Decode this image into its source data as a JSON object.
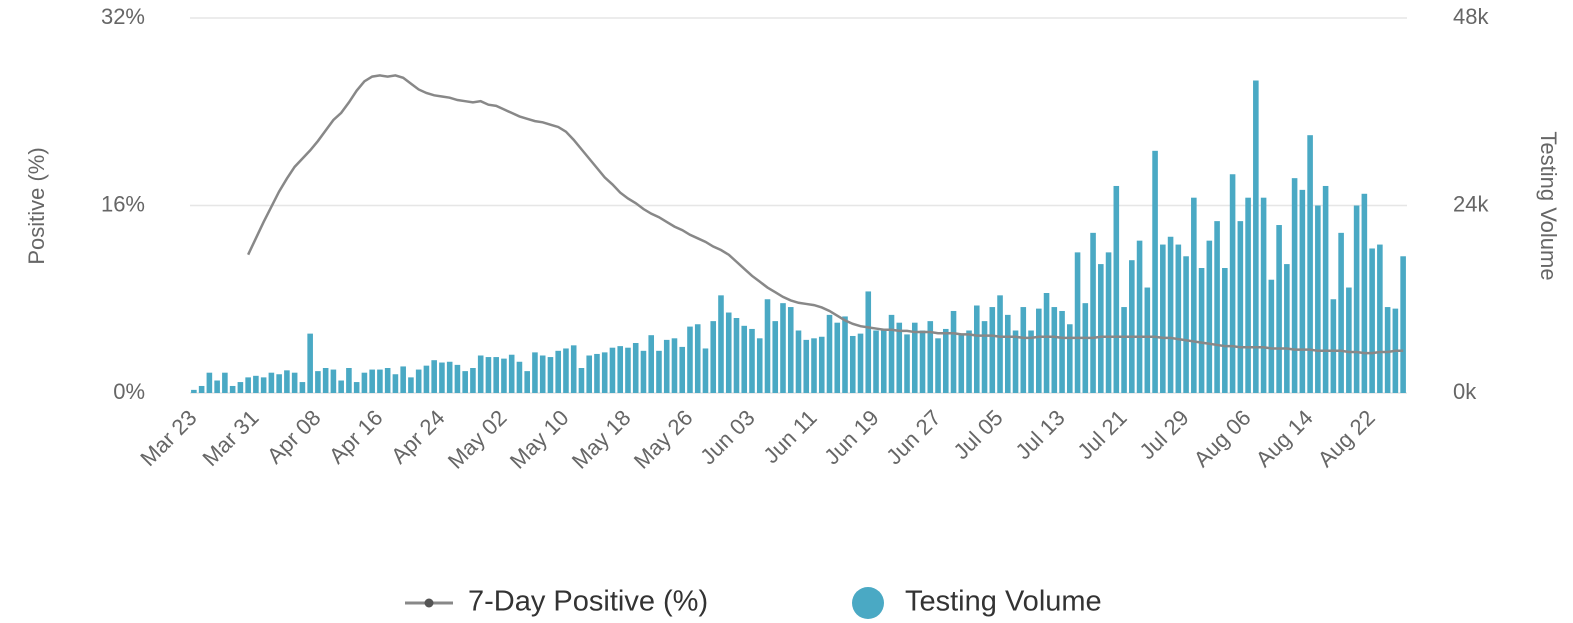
{
  "chart_data": {
    "type": "bar",
    "ylabel": "Positive (%)",
    "y2label": "Testing Volume",
    "categories": [
      "Mar 23",
      null,
      null,
      null,
      null,
      null,
      null,
      null,
      "Mar 31",
      null,
      null,
      null,
      null,
      null,
      null,
      null,
      "Apr 08",
      null,
      null,
      null,
      null,
      null,
      null,
      null,
      "Apr 16",
      null,
      null,
      null,
      null,
      null,
      null,
      null,
      "Apr 24",
      null,
      null,
      null,
      null,
      null,
      null,
      null,
      "May 02",
      null,
      null,
      null,
      null,
      null,
      null,
      null,
      "May 10",
      null,
      null,
      null,
      null,
      null,
      null,
      null,
      "May 18",
      null,
      null,
      null,
      null,
      null,
      null,
      null,
      "May 26",
      null,
      null,
      null,
      null,
      null,
      null,
      null,
      "Jun 03",
      null,
      null,
      null,
      null,
      null,
      null,
      null,
      "Jun 11",
      null,
      null,
      null,
      null,
      null,
      null,
      null,
      "Jun 19",
      null,
      null,
      null,
      null,
      null,
      null,
      null,
      "Jun 27",
      null,
      null,
      null,
      null,
      null,
      null,
      null,
      "Jul 05",
      null,
      null,
      null,
      null,
      null,
      null,
      null,
      "Jul 13",
      null,
      null,
      null,
      null,
      null,
      null,
      null,
      "Jul 21",
      null,
      null,
      null,
      null,
      null,
      null,
      null,
      "Jul 29",
      null,
      null,
      null,
      null,
      null,
      null,
      null,
      "Aug 06",
      null,
      null,
      null,
      null,
      null,
      null,
      null,
      "Aug 14",
      null,
      null,
      null,
      null,
      null,
      null,
      null,
      "Aug 22",
      null,
      null,
      null,
      null
    ],
    "series": [
      {
        "name": "7-Day Positive (%)",
        "type": "line",
        "color": "#888888",
        "values": [
          null,
          null,
          null,
          null,
          null,
          null,
          null,
          11.8,
          13.2,
          14.6,
          15.9,
          17.2,
          18.3,
          19.3,
          20.0,
          20.7,
          21.5,
          22.4,
          23.3,
          23.9,
          24.8,
          25.8,
          26.6,
          27.0,
          27.1,
          27.0,
          27.1,
          26.9,
          26.4,
          25.9,
          25.6,
          25.4,
          25.3,
          25.2,
          25.0,
          24.9,
          24.8,
          24.9,
          24.6,
          24.5,
          24.2,
          23.9,
          23.6,
          23.4,
          23.2,
          23.1,
          22.9,
          22.7,
          22.3,
          21.6,
          20.8,
          20.0,
          19.2,
          18.4,
          17.8,
          17.1,
          16.6,
          16.2,
          15.7,
          15.3,
          15.0,
          14.6,
          14.2,
          13.9,
          13.5,
          13.2,
          12.9,
          12.5,
          12.2,
          11.8,
          11.2,
          10.6,
          10.0,
          9.5,
          9.0,
          8.6,
          8.2,
          7.9,
          7.7,
          7.6,
          7.5,
          7.3,
          7.0,
          6.6,
          6.2,
          5.9,
          5.7,
          5.6,
          5.5,
          5.4,
          5.4,
          5.3,
          5.3,
          5.2,
          5.2,
          5.2,
          5.1,
          5.1,
          5.1,
          5.0,
          5.0,
          4.9,
          4.9,
          4.9,
          4.8,
          4.8,
          4.8,
          4.7,
          4.7,
          4.8,
          4.8,
          4.8,
          4.7,
          4.7,
          4.7,
          4.7,
          4.7,
          4.8,
          4.8,
          4.8,
          4.8,
          4.8,
          4.8,
          4.8,
          4.8,
          4.7,
          4.7,
          4.6,
          4.5,
          4.4,
          4.3,
          4.2,
          4.1,
          4.0,
          4.0,
          3.9,
          3.9,
          3.9,
          3.9,
          3.8,
          3.8,
          3.8,
          3.7,
          3.7,
          3.7,
          3.6,
          3.6,
          3.6,
          3.6,
          3.5,
          3.5,
          3.4,
          3.4,
          3.5,
          3.5,
          3.6,
          3.6
        ]
      },
      {
        "name": "Testing Volume",
        "type": "bar",
        "axis": "y2",
        "color": "#4aa9c4",
        "values": [
          400,
          900,
          2600,
          1600,
          2600,
          900,
          1400,
          2000,
          2200,
          2000,
          2600,
          2400,
          2900,
          2600,
          1400,
          7600,
          2800,
          3200,
          3000,
          1600,
          3200,
          1400,
          2600,
          3000,
          3000,
          3200,
          2400,
          3400,
          2000,
          3000,
          3500,
          4200,
          3900,
          4000,
          3600,
          2800,
          3200,
          4800,
          4600,
          4600,
          4400,
          4900,
          4000,
          2800,
          5200,
          4800,
          4600,
          5400,
          5700,
          6100,
          3200,
          4800,
          5000,
          5200,
          5800,
          6000,
          5800,
          6400,
          5400,
          7400,
          5400,
          6800,
          7000,
          5900,
          8500,
          8800,
          5700,
          9200,
          12500,
          10300,
          9600,
          8600,
          8200,
          7000,
          12000,
          9200,
          11500,
          11000,
          8000,
          6800,
          7000,
          7200,
          10000,
          9000,
          9800,
          7300,
          7600,
          13000,
          8000,
          8000,
          10000,
          9000,
          7500,
          9000,
          8000,
          9200,
          7000,
          8200,
          10500,
          7500,
          8000,
          11200,
          9200,
          11000,
          12500,
          10000,
          8000,
          11000,
          8000,
          10800,
          12800,
          11000,
          10500,
          8800,
          18000,
          11500,
          20500,
          16500,
          18000,
          26500,
          11000,
          17000,
          19500,
          13500,
          31000,
          19000,
          20000,
          19000,
          17500,
          25000,
          16000,
          19500,
          22000,
          16000,
          28000,
          22000,
          25000,
          40000,
          25000,
          14500,
          21500,
          16500,
          27500,
          26000,
          33000,
          24000,
          26500,
          12000,
          20500,
          13500,
          24000,
          25500,
          18500,
          19000,
          11000,
          10800,
          17500
        ]
      }
    ],
    "ylim": [
      0,
      32
    ],
    "yticks": [
      {
        "value": 0,
        "label": "0%"
      },
      {
        "value": 16,
        "label": "16%"
      },
      {
        "value": 32,
        "label": "32%"
      }
    ],
    "y2lim": [
      0,
      48000
    ],
    "y2ticks": [
      {
        "value": 0,
        "label": "0k"
      },
      {
        "value": 24000,
        "label": "24k"
      },
      {
        "value": 48000,
        "label": "48k"
      }
    ],
    "grid": true,
    "legend": "bottom"
  }
}
